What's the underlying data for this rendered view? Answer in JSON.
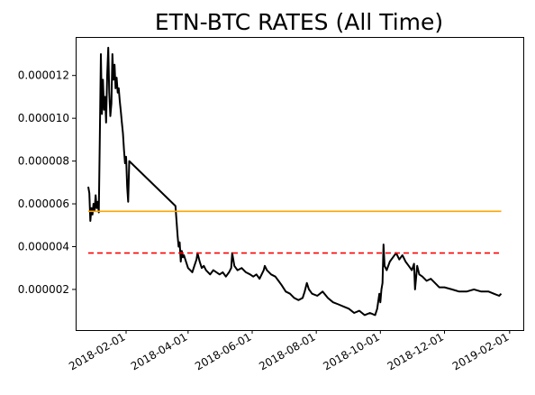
{
  "chart_data": {
    "type": "line",
    "title": "ETN-BTC RATES (All Time)",
    "xlabel": "",
    "ylabel": "",
    "x_axis": {
      "scale": "date",
      "range": [
        "2018-01-01",
        "2019-01-24"
      ],
      "ticks": [
        "2018-02-01",
        "2018-04-01",
        "2018-06-01",
        "2018-08-01",
        "2018-10-01",
        "2018-12-01",
        "2019-02-01"
      ]
    },
    "y_axis": {
      "range": [
        1e-07,
        1.38e-05
      ],
      "ticks": [
        2e-06,
        4e-06,
        6e-06,
        8e-06,
        1e-05,
        1.2e-05
      ],
      "tick_labels": [
        "0.000002",
        "0.000004",
        "0.000006",
        "0.000008",
        "0.000010",
        "0.000012"
      ]
    },
    "grid": false,
    "series": [
      {
        "color": "#000000",
        "style": "solid",
        "points": [
          [
            "2017-12-27",
            6.8e-06
          ],
          [
            "2017-12-28",
            6.5e-06
          ],
          [
            "2017-12-29",
            5.2e-06
          ],
          [
            "2017-12-30",
            5.8e-06
          ],
          [
            "2017-12-31",
            5.5e-06
          ],
          [
            "2018-01-01",
            6e-06
          ],
          [
            "2018-01-02",
            5.7e-06
          ],
          [
            "2018-01-03",
            6.4e-06
          ],
          [
            "2018-01-04",
            5.8e-06
          ],
          [
            "2018-01-05",
            6.1e-06
          ],
          [
            "2018-01-06",
            5.6e-06
          ],
          [
            "2018-01-07",
            9e-06
          ],
          [
            "2018-01-08",
            1.3e-05
          ],
          [
            "2018-01-09",
            1.02e-05
          ],
          [
            "2018-01-10",
            1.18e-05
          ],
          [
            "2018-01-11",
            1.04e-05
          ],
          [
            "2018-01-12",
            1.1e-05
          ],
          [
            "2018-01-13",
            9.8e-06
          ],
          [
            "2018-01-14",
            1.2e-05
          ],
          [
            "2018-01-15",
            1.33e-05
          ],
          [
            "2018-01-16",
            1.12e-05
          ],
          [
            "2018-01-17",
            1.01e-05
          ],
          [
            "2018-01-18",
            1.07e-05
          ],
          [
            "2018-01-19",
            1.3e-05
          ],
          [
            "2018-01-20",
            1.18e-05
          ],
          [
            "2018-01-21",
            1.25e-05
          ],
          [
            "2018-01-22",
            1.14e-05
          ],
          [
            "2018-01-23",
            1.19e-05
          ],
          [
            "2018-01-24",
            1.12e-05
          ],
          [
            "2018-01-25",
            1.14e-05
          ],
          [
            "2018-01-26",
            1.08e-05
          ],
          [
            "2018-01-27",
            1.03e-05
          ],
          [
            "2018-01-28",
            9.8e-06
          ],
          [
            "2018-01-29",
            9.3e-06
          ],
          [
            "2018-01-30",
            8.5e-06
          ],
          [
            "2018-01-31",
            7.9e-06
          ],
          [
            "2018-02-01",
            8.2e-06
          ],
          [
            "2018-02-02",
            6.8e-06
          ],
          [
            "2018-02-03",
            6.1e-06
          ],
          [
            "2018-02-04",
            8e-06
          ],
          [
            "2018-03-20",
            5.9e-06
          ],
          [
            "2018-03-21",
            5.2e-06
          ],
          [
            "2018-03-22",
            4.5e-06
          ],
          [
            "2018-03-23",
            4e-06
          ],
          [
            "2018-03-24",
            4.2e-06
          ],
          [
            "2018-03-25",
            3.3e-06
          ],
          [
            "2018-03-26",
            3.8e-06
          ],
          [
            "2018-03-27",
            3.5e-06
          ],
          [
            "2018-03-28",
            3.6e-06
          ],
          [
            "2018-03-30",
            3.3e-06
          ],
          [
            "2018-04-01",
            3e-06
          ],
          [
            "2018-04-03",
            2.9e-06
          ],
          [
            "2018-04-05",
            2.8e-06
          ],
          [
            "2018-04-07",
            3.1e-06
          ],
          [
            "2018-04-09",
            3.4e-06
          ],
          [
            "2018-04-10",
            3.7e-06
          ],
          [
            "2018-04-12",
            3.3e-06
          ],
          [
            "2018-04-14",
            3e-06
          ],
          [
            "2018-04-16",
            3.1e-06
          ],
          [
            "2018-04-18",
            2.9e-06
          ],
          [
            "2018-04-20",
            2.8e-06
          ],
          [
            "2018-04-22",
            2.7e-06
          ],
          [
            "2018-04-25",
            2.9e-06
          ],
          [
            "2018-04-28",
            2.8e-06
          ],
          [
            "2018-05-01",
            2.7e-06
          ],
          [
            "2018-05-04",
            2.8e-06
          ],
          [
            "2018-05-07",
            2.6e-06
          ],
          [
            "2018-05-10",
            2.8e-06
          ],
          [
            "2018-05-12",
            3e-06
          ],
          [
            "2018-05-13",
            3.7e-06
          ],
          [
            "2018-05-15",
            3.1e-06
          ],
          [
            "2018-05-18",
            2.9e-06
          ],
          [
            "2018-05-22",
            3e-06
          ],
          [
            "2018-05-26",
            2.8e-06
          ],
          [
            "2018-05-30",
            2.7e-06
          ],
          [
            "2018-06-02",
            2.6e-06
          ],
          [
            "2018-06-05",
            2.7e-06
          ],
          [
            "2018-06-08",
            2.5e-06
          ],
          [
            "2018-06-12",
            2.9e-06
          ],
          [
            "2018-06-13",
            3.1e-06
          ],
          [
            "2018-06-15",
            2.9e-06
          ],
          [
            "2018-06-19",
            2.7e-06
          ],
          [
            "2018-06-23",
            2.6e-06
          ],
          [
            "2018-06-26",
            2.4e-06
          ],
          [
            "2018-06-29",
            2.2e-06
          ],
          [
            "2018-07-03",
            1.9e-06
          ],
          [
            "2018-07-07",
            1.8e-06
          ],
          [
            "2018-07-11",
            1.6e-06
          ],
          [
            "2018-07-15",
            1.5e-06
          ],
          [
            "2018-07-19",
            1.6e-06
          ],
          [
            "2018-07-21",
            1.9e-06
          ],
          [
            "2018-07-23",
            2.3e-06
          ],
          [
            "2018-07-25",
            2e-06
          ],
          [
            "2018-07-28",
            1.8e-06
          ],
          [
            "2018-08-02",
            1.7e-06
          ],
          [
            "2018-08-07",
            1.9e-06
          ],
          [
            "2018-08-12",
            1.6e-06
          ],
          [
            "2018-08-17",
            1.4e-06
          ],
          [
            "2018-08-22",
            1.3e-06
          ],
          [
            "2018-08-27",
            1.2e-06
          ],
          [
            "2018-09-01",
            1.1e-06
          ],
          [
            "2018-09-06",
            9e-07
          ],
          [
            "2018-09-11",
            1e-06
          ],
          [
            "2018-09-16",
            8e-07
          ],
          [
            "2018-09-21",
            9e-07
          ],
          [
            "2018-09-26",
            8e-07
          ],
          [
            "2018-09-28",
            1.1e-06
          ],
          [
            "2018-09-30",
            1.8e-06
          ],
          [
            "2018-10-01",
            1.4e-06
          ],
          [
            "2018-10-02",
            2e-06
          ],
          [
            "2018-10-03",
            2.3e-06
          ],
          [
            "2018-10-04",
            4.1e-06
          ],
          [
            "2018-10-05",
            3.1e-06
          ],
          [
            "2018-10-07",
            2.9e-06
          ],
          [
            "2018-10-10",
            3.3e-06
          ],
          [
            "2018-10-13",
            3.5e-06
          ],
          [
            "2018-10-16",
            3.7e-06
          ],
          [
            "2018-10-19",
            3.4e-06
          ],
          [
            "2018-10-22",
            3.6e-06
          ],
          [
            "2018-10-25",
            3.3e-06
          ],
          [
            "2018-10-28",
            3.1e-06
          ],
          [
            "2018-10-31",
            2.9e-06
          ],
          [
            "2018-11-02",
            3.2e-06
          ],
          [
            "2018-11-03",
            2e-06
          ],
          [
            "2018-11-05",
            3.1e-06
          ],
          [
            "2018-11-07",
            2.7e-06
          ],
          [
            "2018-11-10",
            2.6e-06
          ],
          [
            "2018-11-14",
            2.4e-06
          ],
          [
            "2018-11-18",
            2.5e-06
          ],
          [
            "2018-11-22",
            2.3e-06
          ],
          [
            "2018-11-26",
            2.1e-06
          ],
          [
            "2018-12-01",
            2.1e-06
          ],
          [
            "2018-12-08",
            2e-06
          ],
          [
            "2018-12-15",
            1.9e-06
          ],
          [
            "2018-12-22",
            1.9e-06
          ],
          [
            "2018-12-29",
            2e-06
          ],
          [
            "2019-01-05",
            1.9e-06
          ],
          [
            "2019-01-12",
            1.9e-06
          ],
          [
            "2019-01-17",
            1.8e-06
          ],
          [
            "2019-01-22",
            1.7e-06
          ],
          [
            "2019-01-24",
            1.8e-06
          ]
        ]
      },
      {
        "color": "#ffa500",
        "style": "solid",
        "points": [
          [
            "2017-12-27",
            5.65e-06
          ],
          [
            "2019-01-24",
            5.65e-06
          ]
        ]
      },
      {
        "color": "#ff0000",
        "style": "dashed",
        "points": [
          [
            "2017-12-27",
            3.7e-06
          ],
          [
            "2019-01-24",
            3.7e-06
          ]
        ]
      }
    ]
  }
}
